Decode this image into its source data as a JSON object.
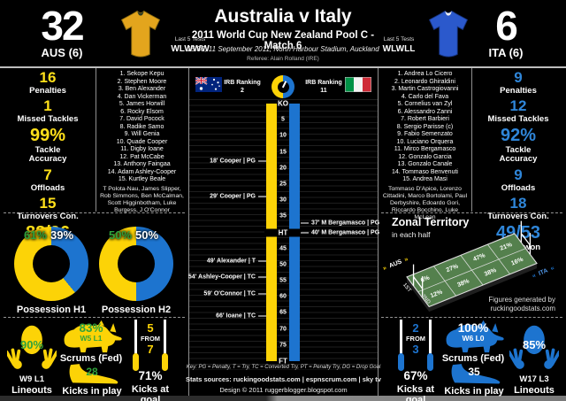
{
  "chart_data": [
    {
      "type": "pie",
      "title": "Possession H1",
      "labels": [
        "AUS",
        "ITA"
      ],
      "values": [
        61,
        39
      ],
      "colors": [
        "#fcd307",
        "#1d74cf"
      ]
    },
    {
      "type": "pie",
      "title": "Possession H2",
      "labels": [
        "AUS",
        "ITA"
      ],
      "values": [
        50,
        50
      ],
      "colors": [
        "#fcd307",
        "#1d74cf"
      ]
    },
    {
      "type": "scatter",
      "title": "Match timeline (minutes 0-80, KO to FT)",
      "x_range": [
        0,
        80
      ],
      "series": [
        {
          "name": "Australia scoring",
          "points": [
            [
              18,
              "Cooper PG"
            ],
            [
              29,
              "Cooper PG"
            ],
            [
              49,
              "Alexander T"
            ],
            [
              54,
              "Ashley-Cooper TC"
            ],
            [
              59,
              "O'Connor TC"
            ],
            [
              66,
              "Ioane TC"
            ]
          ]
        },
        {
          "name": "Italy scoring",
          "points": [
            [
              37,
              "M Bergamasco PG"
            ],
            [
              40,
              "M Bergamasco PG"
            ]
          ]
        }
      ]
    },
    {
      "type": "heatmap",
      "title": "Zonal Territory in each half",
      "rows": [
        "1ST",
        "2ND"
      ],
      "cols": [
        "AUS end zone",
        "AUS half",
        "ITA half",
        "ITA end zone"
      ],
      "values": [
        [
          6,
          27,
          47,
          21
        ],
        [
          12,
          38,
          38,
          16
        ]
      ],
      "unit": "%"
    },
    {
      "type": "table",
      "title": "Match stats",
      "columns": [
        "Stat",
        "AUS",
        "ITA"
      ],
      "rows": [
        [
          "Score",
          32,
          6
        ],
        [
          "Penalties",
          16,
          9
        ],
        [
          "Missed Tackles",
          1,
          12
        ],
        [
          "Tackle Accuracy",
          "99%",
          "92%"
        ],
        [
          "Offloads",
          7,
          9
        ],
        [
          "Turnovers Con.",
          15,
          18
        ],
        [
          "Rucks won",
          "88/96",
          "49/53"
        ],
        [
          "Lineouts",
          "90% W9 L1",
          "85% W17 L3"
        ],
        [
          "Scrums (Fed)",
          "83% W5 L1",
          "100% W6 L0"
        ],
        [
          "Kicks in play",
          28,
          35
        ],
        [
          "Kicks at goal",
          "5 from 7 (71%)",
          "2 from 3 (67%)"
        ]
      ]
    }
  ],
  "header": {
    "title": "Australia v Italy",
    "subtitle": "2011 World Cup New Zealand Pool C - Match 6",
    "detail": "15.30, 11 September 2011, North Harbour Stadium, Auckland",
    "referee": "Referee: Alain Rolland (IRE)"
  },
  "teams": {
    "aus": {
      "score": "32",
      "name": "AUS (6)",
      "last5_label": "Last 5 Tests",
      "last5": "WLWWW",
      "irb_label": "IRB Ranking",
      "irb_rank": "2",
      "color": "#fcd307",
      "num_color": "#ffe01a"
    },
    "ita": {
      "score": "6",
      "name": "ITA (6)",
      "last5_label": "Last 5 Tests",
      "last5": "WLWLL",
      "irb_label": "IRB Ranking",
      "irb_rank": "11",
      "color": "#1d74cf",
      "num_color": "#2f86d9"
    }
  },
  "aus_panel": {
    "stats": [
      {
        "value": "16",
        "label": "Penalties"
      },
      {
        "value": "1",
        "label": "Missed Tackles"
      },
      {
        "value": "99%",
        "label": "Tackle\nAccuracy",
        "cls": "big"
      },
      {
        "value": "7",
        "label": "Offloads"
      },
      {
        "value": "15",
        "label": "Turnovers Con."
      },
      {
        "value": "88/96",
        "label": "Rucks won",
        "cls": "big"
      }
    ],
    "players": [
      "1. Sekope Kepu",
      "2. Stephen Moore",
      "3. Ben Alexander",
      "4. Dan Vickerman",
      "5. James Horwill",
      "6. Rocky Elsom",
      "7. David Pocock",
      "8. Radike Samo",
      "9. Will Genia",
      "10. Quade Cooper",
      "11. Digby Ioane",
      "12. Pat McCabe",
      "13. Anthony Faingaa",
      "14. Adam Ashley-Cooper",
      "15. Kurtley Beale"
    ],
    "reserves": "T Polota-Nau, James Slipper, Rob Simmons, Ben McCalman, Scott Higginbotham, Luke Burgess, J O'Connor"
  },
  "ita_panel": {
    "stats": [
      {
        "value": "9",
        "label": "Penalties"
      },
      {
        "value": "12",
        "label": "Missed Tackles"
      },
      {
        "value": "92%",
        "label": "Tackle\nAccuracy",
        "cls": "big"
      },
      {
        "value": "9",
        "label": "Offloads"
      },
      {
        "value": "18",
        "label": "Turnovers Con."
      },
      {
        "value": "49/53",
        "label": "Rucks won",
        "cls": "big"
      }
    ],
    "players": [
      "1. Andrea Lo Cicero",
      "2. Leonardo Ghiraldini",
      "3. Martin Castrogiovanni",
      "4. Carlo del Fava",
      "5. Cornelius van Zyl",
      "6. Alessandro Zanni",
      "7. Robert Barbieri",
      "8. Sergio Parisse (c)",
      "9. Fabio Semenzato",
      "10. Luciano Orquera",
      "11. Mirco Bergamasco",
      "12. Gonzalo Garcia",
      "13. Gonzalo Canale",
      "14. Tommaso Benvenuti",
      "15. Andrea Masi"
    ],
    "reserves": "Tommaso D'Apice, Lorenzo Cittadini, Marco Bortolami, Paul Derbyshire, Edoardo Gori, Riccardo Bocchino, Luke McLean"
  },
  "timeline": {
    "ticks": [
      {
        "min": 0,
        "label": "KO",
        "cls": "major"
      },
      {
        "min": 5,
        "label": "5"
      },
      {
        "min": 10,
        "label": "10"
      },
      {
        "min": 15,
        "label": "15"
      },
      {
        "min": 20,
        "label": "20"
      },
      {
        "min": 25,
        "label": "25"
      },
      {
        "min": 30,
        "label": "30"
      },
      {
        "min": 35,
        "label": "35"
      },
      {
        "min": 40,
        "label": "HT",
        "cls": "major"
      },
      {
        "min": 45,
        "label": "45"
      },
      {
        "min": 50,
        "label": "50"
      },
      {
        "min": 55,
        "label": "55"
      },
      {
        "min": 60,
        "label": "60"
      },
      {
        "min": 65,
        "label": "65"
      },
      {
        "min": 70,
        "label": "70"
      },
      {
        "min": 75,
        "label": "75"
      },
      {
        "min": 80,
        "label": "FT",
        "cls": "major"
      }
    ],
    "aus_events": [
      {
        "min": 18,
        "label": "18' Cooper | PG"
      },
      {
        "min": 29,
        "label": "29' Cooper | PG"
      },
      {
        "min": 49,
        "label": "49' Alexander | T"
      },
      {
        "min": 54,
        "label": "54' Ashley-Cooper | TC"
      },
      {
        "min": 59,
        "label": "59' O'Connor | TC"
      },
      {
        "min": 66,
        "label": "66' Ioane | TC"
      }
    ],
    "ita_events": [
      {
        "min": 37,
        "label": "37' M Bergamasco | PG"
      },
      {
        "min": 40,
        "label": "40' M Bergamasco | PG"
      }
    ],
    "key": "Key: PG = Penalty, T = Try, TC = Converted Try, PT = Penalty Try, DG = Drop Goal"
  },
  "possession": {
    "h1": {
      "label": "Possession H1",
      "aus": "61%",
      "ita": "39%",
      "ita_pct": 39
    },
    "h2": {
      "label": "Possession H2",
      "aus": "50%",
      "ita": "50%",
      "ita_pct": 50
    }
  },
  "zonal": {
    "title": "Zonal Territory",
    "subtitle": "in each half",
    "first_half": [
      "6%",
      "27%",
      "47%",
      "21%"
    ],
    "second_half": [
      "12%",
      "38%",
      "38%",
      "16%"
    ],
    "row1_label": "1ST",
    "row2_label": "2ND",
    "aus_label": "AUS",
    "ita_label": "ITA",
    "arrow_r": "»",
    "arrow_l": "«",
    "credit1": "Figures generated by",
    "credit2": "ruckingoodstats.com"
  },
  "aus_setpiece": {
    "lineouts": {
      "pct": "90%",
      "record": "W9 L1",
      "label": "Lineouts"
    },
    "scrums": {
      "pct": "83%",
      "record": "W5 L1",
      "label": "Scrums (Fed)"
    },
    "kicks_in_play": {
      "value": "28",
      "label": "Kicks in play"
    },
    "kicks_at_goal": {
      "made": "5",
      "from_word": "FROM",
      "attempts": "7",
      "pct": "71%",
      "label": "Kicks at goal"
    }
  },
  "ita_setpiece": {
    "lineouts": {
      "pct": "85%",
      "record": "W17 L3",
      "label": "Lineouts"
    },
    "scrums": {
      "pct": "100%",
      "record": "W6 L0",
      "label": "Scrums (Fed)"
    },
    "kicks_in_play": {
      "value": "35",
      "label": "Kicks in play"
    },
    "kicks_at_goal": {
      "made": "2",
      "from_word": "FROM",
      "attempts": "3",
      "pct": "67%",
      "label": "Kicks at goal"
    }
  },
  "footer": {
    "sources": "Stats sources: ruckingoodstats.com | espnscrum.com | sky tv",
    "design": "Design © 2011 ruggerblogger.blogspot.com"
  }
}
